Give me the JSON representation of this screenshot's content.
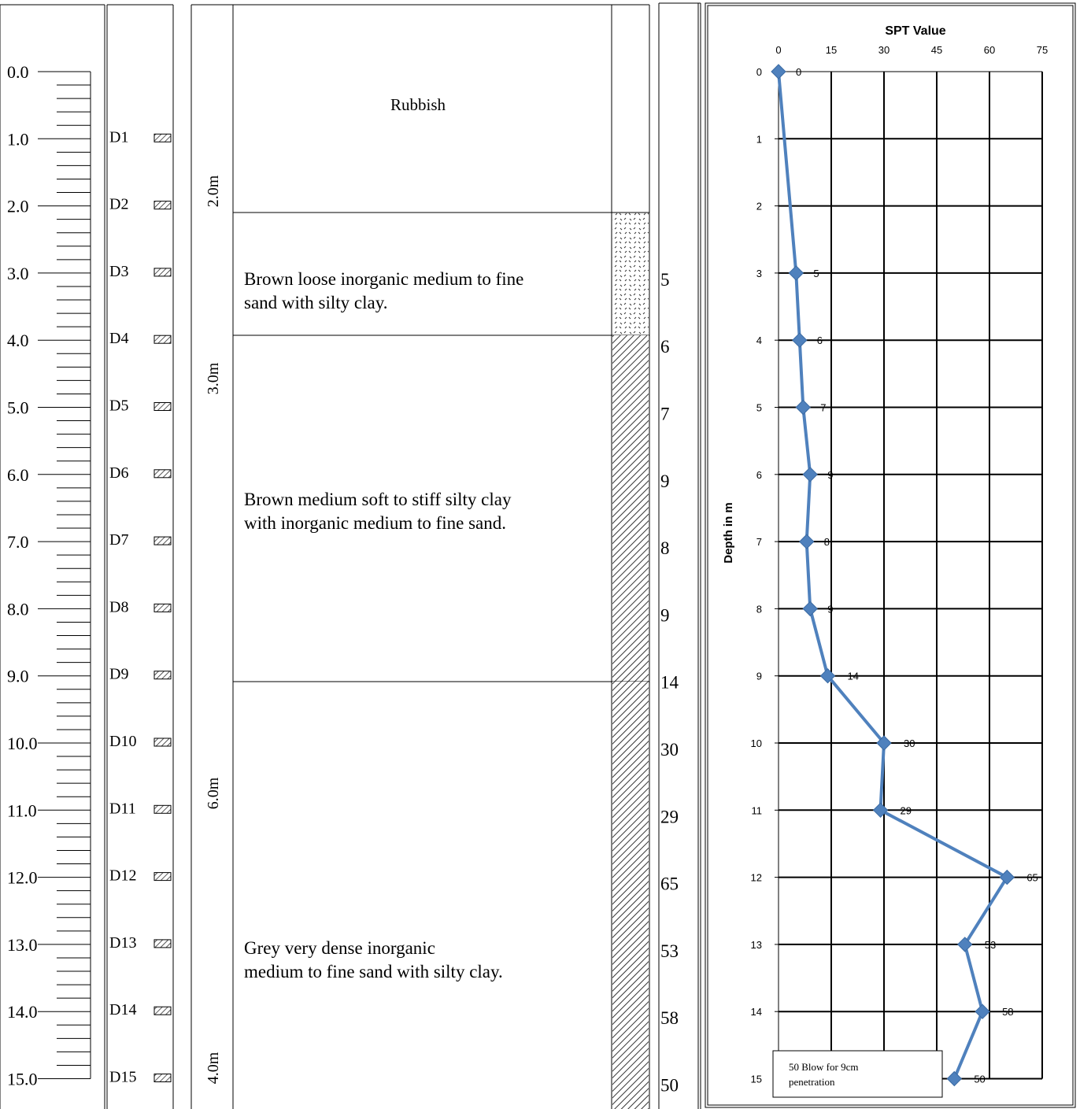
{
  "depth_scale": {
    "labels": [
      "0.0",
      "1.0",
      "2.0",
      "3.0",
      "4.0",
      "5.0",
      "6.0",
      "7.0",
      "8.0",
      "9.0",
      "10.0",
      "11.0",
      "12.0",
      "13.0",
      "14.0",
      "15.0"
    ]
  },
  "samples": [
    "D1",
    "D2",
    "D3",
    "D4",
    "D5",
    "D6",
    "D7",
    "D8",
    "D9",
    "D10",
    "D11",
    "D12",
    "D13",
    "D14",
    "D15"
  ],
  "thickness_labels": [
    "2.0m",
    "3.0m",
    "6.0m",
    "4.0m"
  ],
  "strata": [
    {
      "description_lines": [
        "Rubbish"
      ],
      "pattern": "none"
    },
    {
      "description_lines": [
        "Brown loose inorganic medium to fine",
        "sand with silty clay."
      ],
      "pattern": "sand"
    },
    {
      "description_lines": [
        "Brown medium soft to stiff silty clay",
        "with inorganic medium to fine sand."
      ],
      "pattern": "hatch"
    },
    {
      "description_lines": [
        "Grey very dense inorganic",
        "medium to fine sand with silty clay."
      ],
      "pattern": "hatch"
    }
  ],
  "spt_column": {
    "values": [
      "5",
      "6",
      "7",
      "9",
      "8",
      "9",
      "14",
      "30",
      "29",
      "65",
      "53",
      "58",
      "50"
    ]
  },
  "chart_data": {
    "type": "line",
    "title": "SPT Value",
    "xlabel": "",
    "ylabel": "Depth in m",
    "x_ticks": [
      0,
      15,
      30,
      45,
      60,
      75
    ],
    "y_ticks": [
      0,
      1,
      2,
      3,
      4,
      5,
      6,
      7,
      8,
      9,
      10,
      11,
      12,
      13,
      14,
      15
    ],
    "xlim": [
      0,
      75
    ],
    "ylim": [
      0,
      15
    ],
    "y_inverted": true,
    "grid": true,
    "x_axis_position": "top",
    "line_color": "#4F81BD",
    "series": [
      {
        "points": [
          {
            "depth": 0,
            "spt": 0,
            "label": "0"
          },
          {
            "depth": 3,
            "spt": 5,
            "label": "5"
          },
          {
            "depth": 4,
            "spt": 6,
            "label": "6"
          },
          {
            "depth": 5,
            "spt": 7,
            "label": "7"
          },
          {
            "depth": 6,
            "spt": 9,
            "label": "9"
          },
          {
            "depth": 7,
            "spt": 8,
            "label": "8"
          },
          {
            "depth": 8,
            "spt": 9,
            "label": "9"
          },
          {
            "depth": 9,
            "spt": 14,
            "label": "14"
          },
          {
            "depth": 10,
            "spt": 30,
            "label": "30"
          },
          {
            "depth": 11,
            "spt": 29,
            "label": "29"
          },
          {
            "depth": 12,
            "spt": 65,
            "label": "65"
          },
          {
            "depth": 13,
            "spt": 53,
            "label": "53"
          },
          {
            "depth": 14,
            "spt": 58,
            "label": "58"
          },
          {
            "depth": 15,
            "spt": 50,
            "label": "50"
          }
        ]
      }
    ],
    "annotation_lines": [
      "50 Blow for 9cm",
      "penetration"
    ]
  }
}
